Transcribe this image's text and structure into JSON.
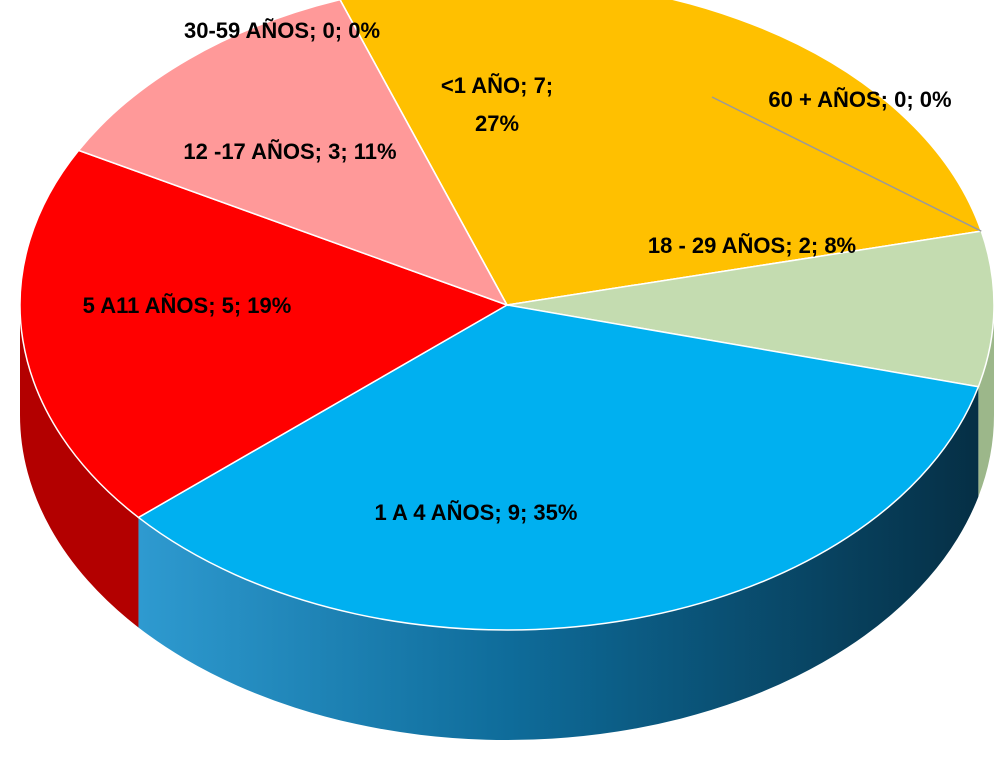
{
  "chart_data": {
    "type": "pie",
    "style": "3d",
    "slices": [
      {
        "name": "<1 AÑO",
        "value": 7,
        "percent": 27,
        "color": "#FFC000",
        "side": "#C79600",
        "label": "<1 AÑO; 7;",
        "label2": "27%"
      },
      {
        "name": "60 + AÑOS",
        "value": 0,
        "percent": 0,
        "color": "#808080",
        "side": "#606060",
        "label": "60 + AÑOS; 0; 0%"
      },
      {
        "name": "18 - 29 AÑOS",
        "value": 2,
        "percent": 8,
        "color": "#C4DCB0",
        "side": "#9CB78A",
        "label": "18 - 29 AÑOS; 2; 8%"
      },
      {
        "name": "1 A 4 AÑOS",
        "value": 9,
        "percent": 35,
        "color": "#00B0F0",
        "side": "#0A4E70",
        "label": "1 A 4 AÑOS; 9; 35%"
      },
      {
        "name": "5 A11 AÑOS",
        "value": 5,
        "percent": 19,
        "color": "#FF0000",
        "side": "#B30000",
        "label": "5 A11 AÑOS; 5; 19%"
      },
      {
        "name": "12 -17 AÑOS",
        "value": 3,
        "percent": 11,
        "color": "#FF9999",
        "side": "#D46F6F",
        "label": "12 -17 AÑOS; 3; 11%"
      },
      {
        "name": "30-59 AÑOS",
        "value": 0,
        "percent": 0,
        "color": "#A0A0A0",
        "side": "#707070",
        "label": "30-59 AÑOS; 0; 0%"
      }
    ]
  }
}
